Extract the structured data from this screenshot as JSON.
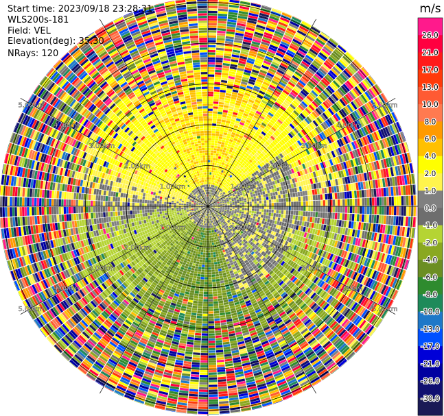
{
  "header": {
    "start_time": "Start time: 2023/09/18 23:28:31",
    "instrument": "WLS200s-181",
    "field": "Field: VEL",
    "elevation": "Elevation(deg): 35.30",
    "nrays": "NRays: 120"
  },
  "colorbar": {
    "unit": "m/s",
    "ticks": [
      "26.0",
      "21.0",
      "17.0",
      "13.0",
      "10.0",
      "8.0",
      "6.0",
      "4.0",
      "2.0",
      "1.0",
      "0.0",
      "-1.0",
      "-2.0",
      "-4.0",
      "-6.0",
      "-8.0",
      "-10.0",
      "-13.0",
      "-17.0",
      "-21.0",
      "-26.0",
      "-30.0"
    ],
    "colors": [
      "#ff1a8c",
      "#ff0040",
      "#ff1a1a",
      "#ff3a0a",
      "#ff5a33",
      "#ff7a50",
      "#ff9a00",
      "#ffc000",
      "#ffff00",
      "#fff44d",
      "#808080",
      "#6e6e6e",
      "#b5d433",
      "#8aa820",
      "#6b8e23",
      "#2e8b2e",
      "#1e8a5a",
      "#1e78c8",
      "#0050ff",
      "#0000d8",
      "#0000a0",
      "#101070",
      "#1a1a55"
    ]
  },
  "chart_data": {
    "type": "heatmap",
    "subtype": "ppi-polar-scan",
    "field": "VEL",
    "nrays": 120,
    "elevation_deg": 35.3,
    "range_rings": [
      {
        "radius_km": 1.0,
        "label": "1.00km"
      },
      {
        "radius_km": 2.0,
        "label": "2.00km"
      },
      {
        "radius_km": 3.0,
        "label": "3.00km"
      },
      {
        "radius_km": 4.0,
        "label": "4.00km"
      },
      {
        "radius_km": 5.0,
        "label": "5.00km"
      }
    ],
    "max_range_km": 5.3,
    "spokes_deg": [
      0,
      30,
      60,
      90,
      120,
      150,
      180,
      210,
      240,
      270,
      300,
      330
    ],
    "velocity_pattern": {
      "north_sector": "positive, 2.0 to 6.0 m/s (yellow/orange)",
      "east_near_range": "near zero, -1.0 to 1.0 m/s (grey)",
      "south_sector": "negative, -2.0 to -8.0 m/s (green)",
      "far_range": "noise across full scale"
    }
  }
}
